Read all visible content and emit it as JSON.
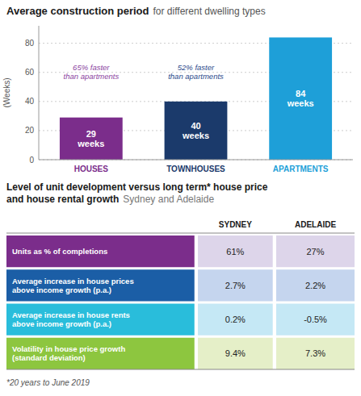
{
  "chart_data": [
    {
      "type": "bar",
      "title": "Average construction period",
      "subtitle": "for different dwelling types",
      "categories": [
        "HOUSES",
        "TOWNHOUSES",
        "APARTMENTS"
      ],
      "values": [
        29,
        40,
        84
      ],
      "value_labels": [
        "29\nweeks",
        "40\nweeks",
        "84\nweeks"
      ],
      "data_labels": true,
      "colors": [
        "#7B2D8B",
        "#1B3A6B",
        "#1E9FD8"
      ],
      "annotations": [
        {
          "text": "65% faster\nthan apartments",
          "x": "HOUSES",
          "y": 60,
          "color": "#8B3FA0"
        },
        {
          "text": "52% faster\nthan apartments",
          "x": "TOWNHOUSES",
          "y": 60,
          "color": "#2B4A8B"
        }
      ],
      "y_label": "(Weeks)",
      "ylim": [
        0,
        92
      ],
      "yticks": [
        0,
        20,
        40,
        60,
        80
      ],
      "grid": true
    },
    {
      "type": "table",
      "title": "Level of unit development versus long term* house price\nand house rental growth",
      "subtitle": "Sydney and Adelaide",
      "categories": [
        "Units as % of completions",
        "Average increase in house prices\nabove income growth (p.a.)",
        "Average increase in house rents\nabove income growth (p.a.)",
        "Volatility in house price growth\n(standard deviation)"
      ],
      "colors": [
        "#7B2D8B",
        "#1B5EA6",
        "#29BDDB",
        "#8DC63F"
      ],
      "series": [
        {
          "name": "SYDNEY",
          "values": [
            61,
            2.7,
            0.2,
            9.4
          ],
          "value_labels": [
            "61%",
            "2.7%",
            "0.2%",
            "9.4%"
          ],
          "colors": [
            "#DDD5EA",
            "#C5D5EE",
            "#C5E8F5",
            "#E5EFC8"
          ]
        },
        {
          "name": "ADELAIDE",
          "values": [
            27,
            2.2,
            -0.5,
            7.3
          ],
          "value_labels": [
            "27%",
            "2.2%",
            "-0.5%",
            "7.3%"
          ],
          "colors": [
            "#DDD5EA",
            "#C5D5EE",
            "#C5E8F5",
            "#E5EFC8"
          ]
        }
      ],
      "footnote": "*20 years to June 2019"
    }
  ]
}
